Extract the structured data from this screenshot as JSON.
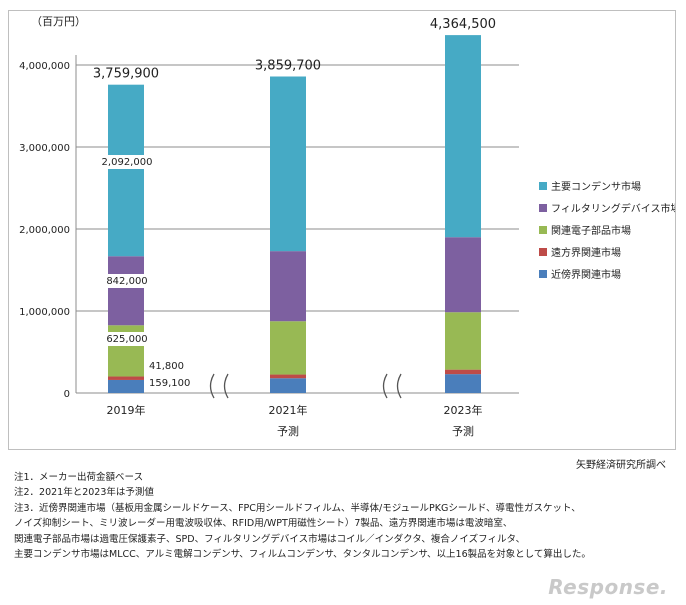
{
  "chart_data": {
    "type": "bar",
    "stacked": true,
    "unit_label": "（百万円）",
    "yticks": [
      "0",
      "1,000,000",
      "2,000,000",
      "3,000,000",
      "4,000,000"
    ],
    "ylim": [
      0,
      4000000
    ],
    "grid": true,
    "legend_position": "right",
    "categories": [
      {
        "label": "2019年",
        "sub": ""
      },
      {
        "label": "2021年",
        "sub": "予測"
      },
      {
        "label": "2023年",
        "sub": "予測"
      }
    ],
    "series": [
      {
        "name": "近傍界関連市場",
        "color": "#4a7ebb",
        "values": [
          159100,
          180000,
          230000
        ]
      },
      {
        "name": "遠方界関連市場",
        "color": "#be4b48",
        "values": [
          41800,
          45000,
          55000
        ]
      },
      {
        "name": "関連電子部品市場",
        "color": "#98b954",
        "values": [
          625000,
          650000,
          700000
        ]
      },
      {
        "name": "フィルタリングデバイス市場",
        "color": "#7d60a0",
        "values": [
          842000,
          855000,
          915000
        ]
      },
      {
        "name": "主要コンデンサ市場",
        "color": "#46aac5",
        "values": [
          2092000,
          2129700,
          2464500
        ]
      }
    ],
    "totals": [
      "3,759,900",
      "3,859,700",
      "4,364,500"
    ],
    "value_labels_2019": [
      "159,100",
      "41,800",
      "625,000",
      "842,000",
      "2,092,000"
    ]
  },
  "notes": [
    "注1．メーカー出荷金額ベース",
    "注2．2021年と2023年は予測値",
    "注3．近傍界関連市場（基板用金属シールドケース、FPC用シールドフィルム、半導体/モジュールPKGシールド、導電性ガスケット、",
    "ノイズ抑制シート、ミリ波レーダー用電波吸収体、RFID用/WPT用磁性シート）7製品、遠方界関連市場は電波暗室、",
    "関連電子部品市場は過電圧保護素子、SPD、フィルタリングデバイス市場はコイル／インダクタ、複合ノイズフィルタ、",
    "主要コンデンサ市場はMLCC、アルミ電解コンデンサ、フィルムコンデンサ、タンタルコンデンサ、以上16製品を対象として算出した。"
  ],
  "source": "矢野経済研究所調べ",
  "watermark": "Response."
}
